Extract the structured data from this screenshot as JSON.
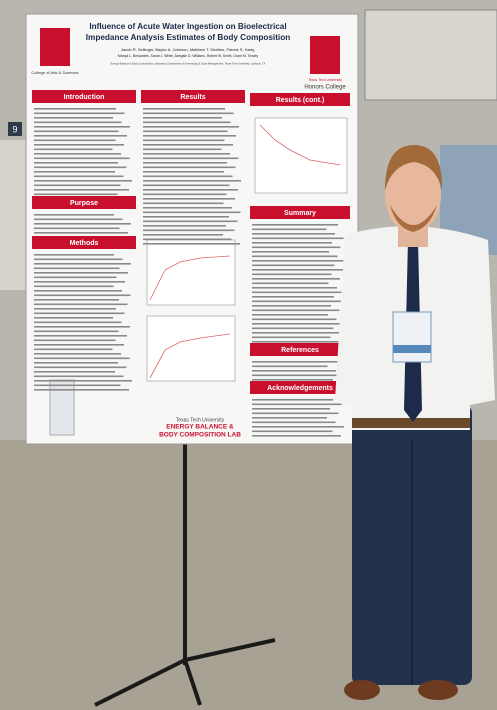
{
  "poster": {
    "title_lines": [
      "Influence of Acute Water Ingestion on Bioelectrical",
      "Impedance Analysis Estimates of Body Composition"
    ],
    "author_lines": [
      "Jacob R. Sellinger, Baylor A. Johnson, Matthew T. Stratton, Patrick S. Harty,",
      "Marqui L. Benavides, Sarah J. White, Abegale D. Williams, Robert W. Smith, Grant M. Tinsley"
    ],
    "affiliation": "Energy Balance & Body Composition Laboratory, Department of Kinesiology & Sport Management, Texas Tech University, Lubbock, TX",
    "left_logo": "College of Arts & Sciences",
    "right_logo_top": "Texas Tech University",
    "right_logo": "Honors College",
    "sections": [
      "Introduction",
      "Results",
      "Results (cont.)",
      "Purpose",
      "Methods",
      "Summary",
      "References",
      "Acknowledgements"
    ],
    "lab_logo": [
      "Texas Tech University",
      "ENERGY BALANCE &",
      "BODY COMPOSITION LAB"
    ]
  },
  "booth_number": "9"
}
